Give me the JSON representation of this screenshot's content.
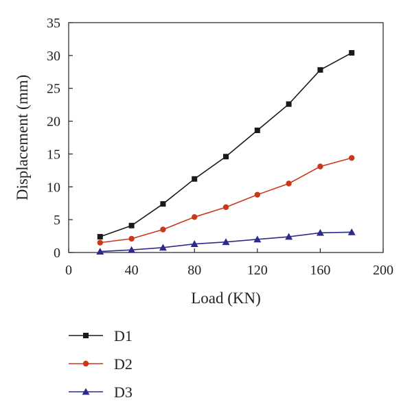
{
  "chart_data": {
    "type": "line",
    "xlabel": "Load (KN)",
    "ylabel": "Displacement (mm)",
    "xlim": [
      0,
      200
    ],
    "ylim": [
      0,
      35
    ],
    "xticks": [
      0,
      40,
      80,
      120,
      160,
      200
    ],
    "yticks": [
      0,
      5,
      10,
      15,
      20,
      25,
      30,
      35
    ],
    "grid": false,
    "legend_position": "bottom-left",
    "x": [
      20,
      40,
      60,
      80,
      100,
      120,
      140,
      160,
      180
    ],
    "series": [
      {
        "name": "D1",
        "marker": "square",
        "color": "#1a1a1a",
        "values": [
          2.4,
          4.1,
          7.4,
          11.2,
          14.6,
          18.6,
          22.6,
          27.8,
          30.4
        ]
      },
      {
        "name": "D2",
        "marker": "circle",
        "color": "#c8391a",
        "values": [
          1.5,
          2.1,
          3.5,
          5.4,
          6.9,
          8.8,
          10.5,
          13.1,
          14.4
        ]
      },
      {
        "name": "D3",
        "marker": "triangle",
        "color": "#2e2a8a",
        "values": [
          0.15,
          0.4,
          0.75,
          1.3,
          1.6,
          2.0,
          2.4,
          3.0,
          3.1
        ]
      }
    ]
  }
}
